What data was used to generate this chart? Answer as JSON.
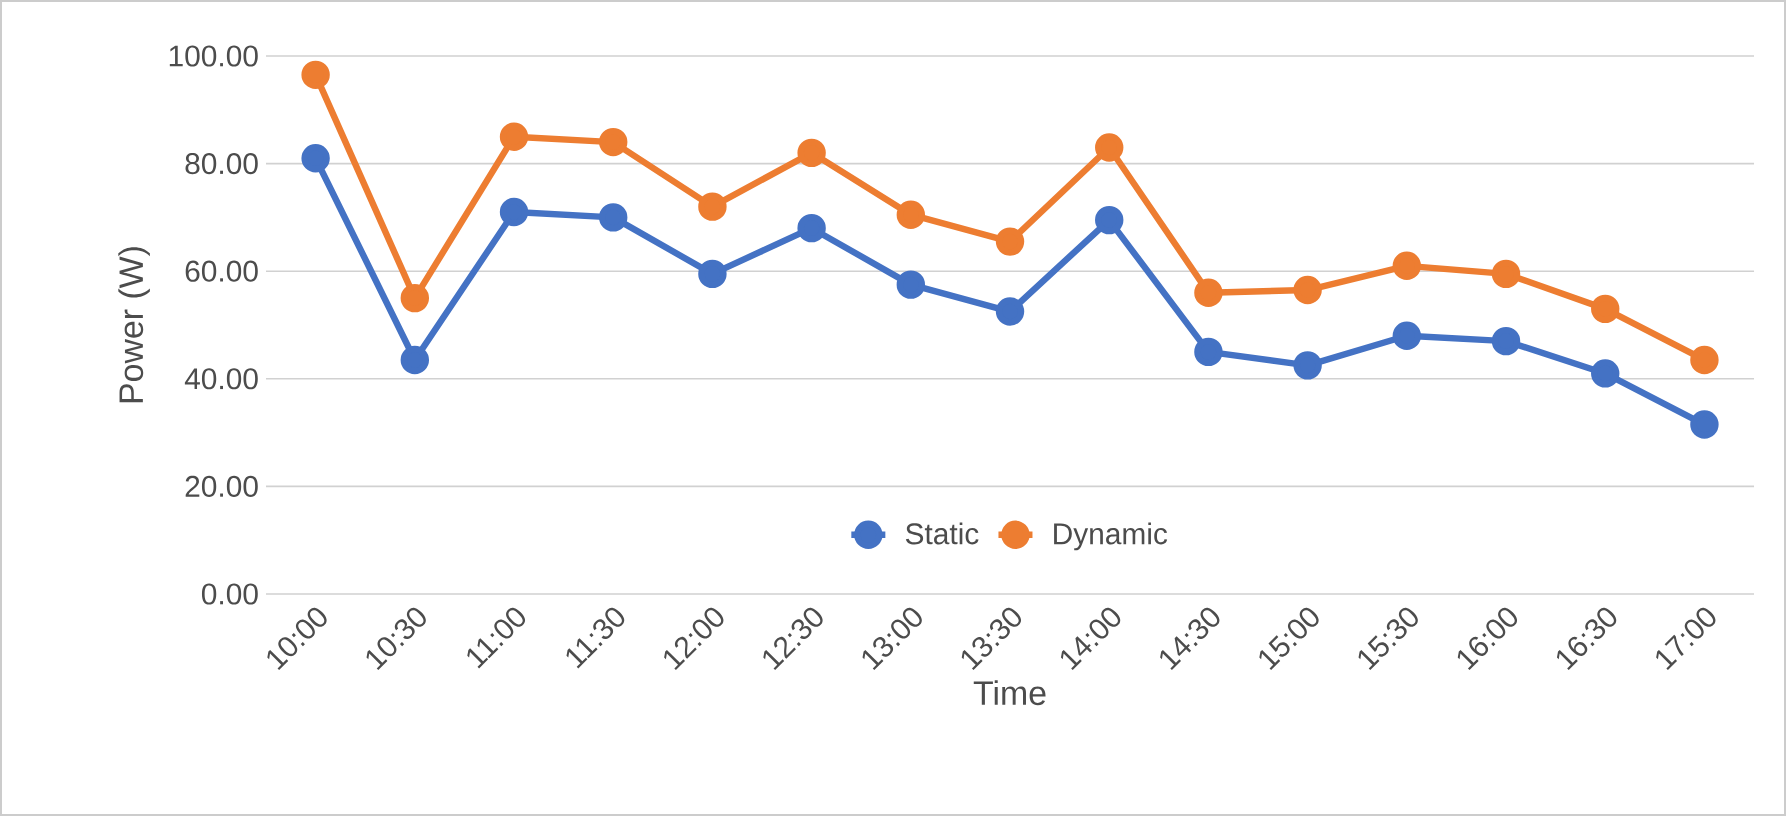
{
  "chart_data": {
    "type": "line",
    "xlabel": "Time",
    "ylabel": "Power (W)",
    "categories": [
      "10:00",
      "10:30",
      "11:00",
      "11:30",
      "12:00",
      "12:30",
      "13:00",
      "13:30",
      "14:00",
      "14:30",
      "15:00",
      "15:30",
      "16:00",
      "16:30",
      "17:00"
    ],
    "series": [
      {
        "name": "Static",
        "color": "#4472c4",
        "values": [
          81,
          43.5,
          71,
          70,
          59.5,
          68,
          57.5,
          52.5,
          69.5,
          45,
          42.5,
          48,
          47,
          41,
          31.5
        ]
      },
      {
        "name": "Dynamic",
        "color": "#ed7d31",
        "values": [
          96.5,
          55,
          85,
          84,
          72,
          82,
          70.5,
          65.5,
          83,
          56,
          56.5,
          61,
          59.5,
          53,
          43.5
        ]
      }
    ],
    "ylim": [
      0,
      100
    ],
    "yticks": [
      {
        "value": 0,
        "label": "0.00"
      },
      {
        "value": 20,
        "label": "20.00"
      },
      {
        "value": 40,
        "label": "40.00"
      },
      {
        "value": 60,
        "label": "60.00"
      },
      {
        "value": 80,
        "label": "80.00"
      },
      {
        "value": 100,
        "label": "100.00"
      }
    ],
    "grid": "y",
    "legend": "bottom",
    "marker": "circle",
    "line_style": "solid"
  }
}
